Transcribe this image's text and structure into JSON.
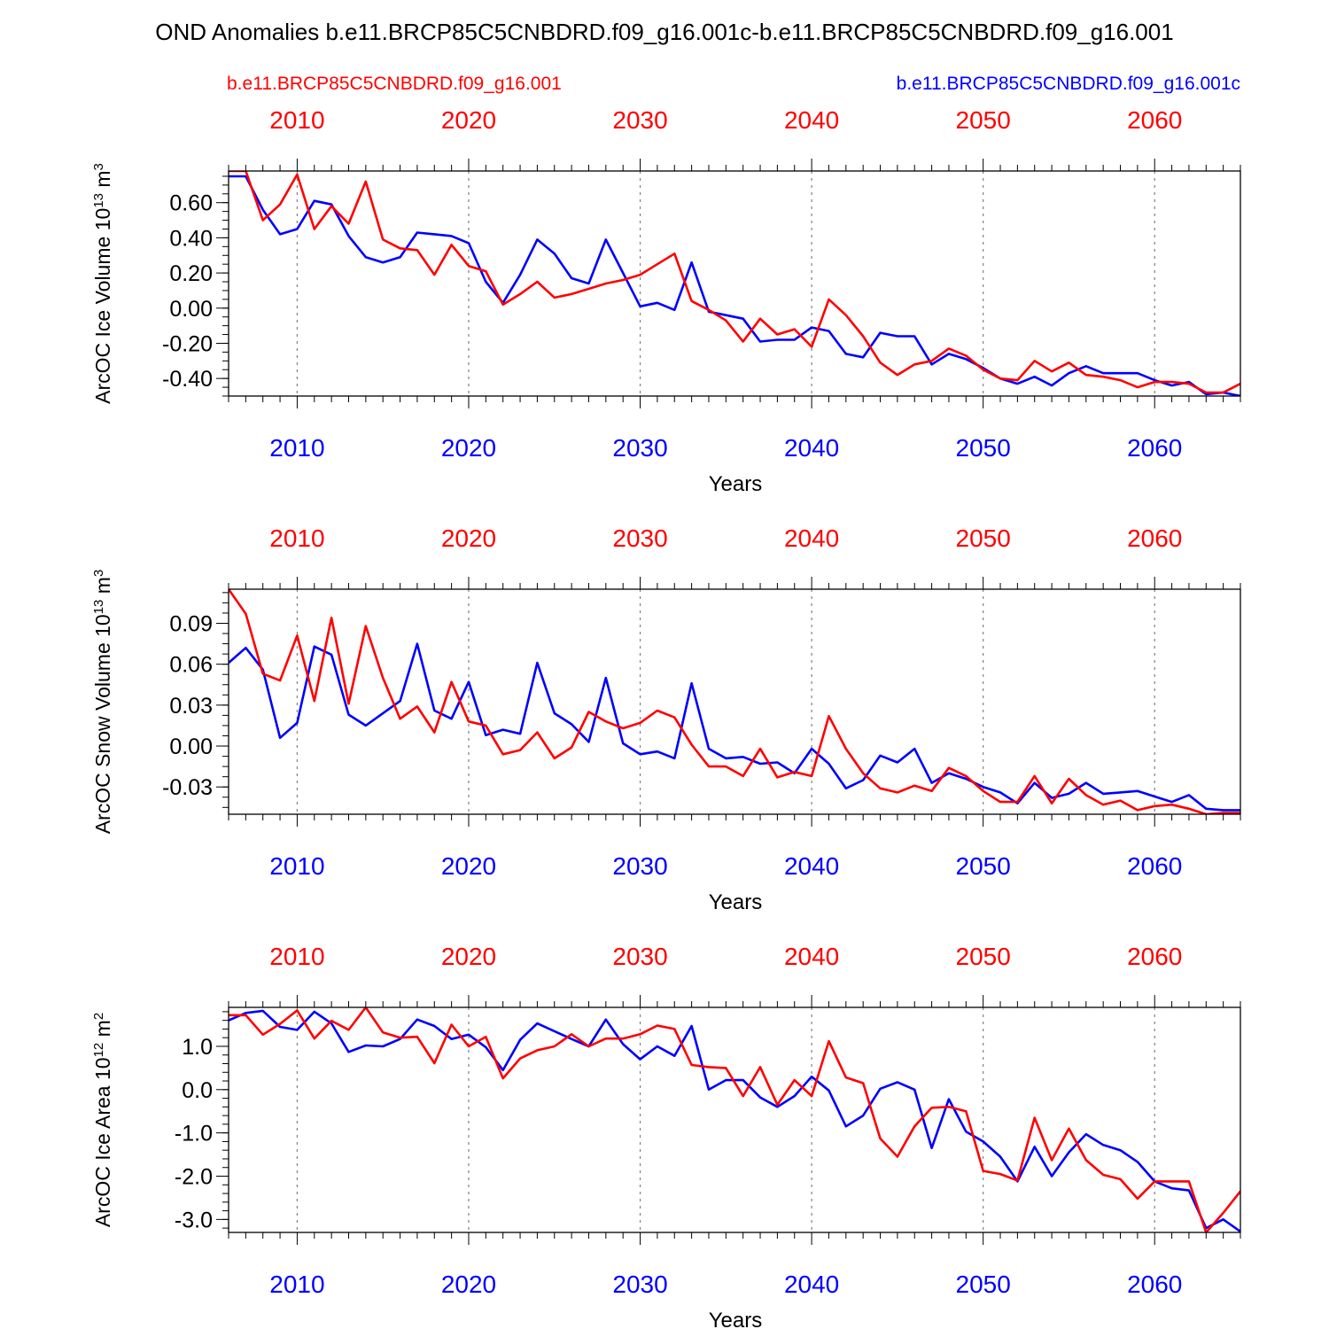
{
  "title": "OND Anomalies b.e11.BRCP85C5CNBDRD.f09_g16.001c-b.e11.BRCP85C5CNBDRD.f09_g16.001",
  "legend": {
    "red_label": "b.e11.BRCP85C5CNBDRD.f09_g16.001",
    "blue_label": "b.e11.BRCP85C5CNBDRD.f09_g16.001c"
  },
  "colors": {
    "red": "#ff0000",
    "blue": "#0000ff",
    "axis": "#000000",
    "grid": "#808080"
  },
  "chart_data": [
    {
      "type": "line",
      "ylabel_main": "ArcOC Ice Volume 10",
      "ylabel_exp": "13",
      "ylabel_tail": " m",
      "ylabel_unit_exp": "3",
      "xlabel": "Years",
      "xlim": [
        2006,
        2065
      ],
      "ylim": [
        -0.5,
        0.78
      ],
      "yticks": [
        0.6,
        0.4,
        0.2,
        0.0,
        -0.2,
        -0.4
      ],
      "ytick_labels": [
        "0.60",
        "0.40",
        "0.20",
        "0.00",
        "-0.20",
        "-0.40"
      ],
      "yminor_step": 0.05,
      "xticks": [
        2010,
        2020,
        2030,
        2040,
        2050,
        2060
      ],
      "xtick_labels": [
        "2010",
        "2020",
        "2030",
        "2040",
        "2050",
        "2060"
      ],
      "series": [
        {
          "name": "b.e11.BRCP85C5CNBDRD.f09_g16.001",
          "color": "red",
          "values": [
            0.78,
            0.78,
            0.5,
            0.59,
            0.76,
            0.45,
            0.58,
            0.48,
            0.72,
            0.39,
            0.34,
            0.33,
            0.19,
            0.36,
            0.24,
            0.21,
            0.02,
            0.08,
            0.15,
            0.06,
            0.08,
            0.11,
            0.14,
            0.16,
            0.19,
            0.25,
            0.31,
            0.04,
            -0.01,
            -0.07,
            -0.19,
            -0.06,
            -0.15,
            -0.12,
            -0.22,
            0.05,
            -0.04,
            -0.16,
            -0.31,
            -0.38,
            -0.32,
            -0.3,
            -0.23,
            -0.27,
            -0.35,
            -0.4,
            -0.41,
            -0.3,
            -0.36,
            -0.31,
            -0.38,
            -0.39,
            -0.41,
            -0.45,
            -0.42,
            -0.42,
            -0.43,
            -0.48,
            -0.48,
            -0.43
          ]
        },
        {
          "name": "b.e11.BRCP85C5CNBDRD.f09_g16.001c",
          "color": "blue",
          "values": [
            0.75,
            0.75,
            0.56,
            0.42,
            0.45,
            0.61,
            0.59,
            0.41,
            0.29,
            0.26,
            0.29,
            0.43,
            0.42,
            0.41,
            0.37,
            0.15,
            0.03,
            0.19,
            0.39,
            0.31,
            0.17,
            0.14,
            0.39,
            0.2,
            0.01,
            0.03,
            -0.01,
            0.26,
            -0.02,
            -0.04,
            -0.06,
            -0.19,
            -0.18,
            -0.18,
            -0.11,
            -0.13,
            -0.26,
            -0.28,
            -0.14,
            -0.16,
            -0.16,
            -0.32,
            -0.26,
            -0.29,
            -0.34,
            -0.4,
            -0.43,
            -0.39,
            -0.44,
            -0.37,
            -0.33,
            -0.37,
            -0.37,
            -0.37,
            -0.41,
            -0.44,
            -0.42,
            -0.49,
            -0.48,
            -0.5
          ]
        }
      ]
    },
    {
      "type": "line",
      "ylabel_main": "ArcOC Snow Volume 10",
      "ylabel_exp": "13",
      "ylabel_tail": " m",
      "ylabel_unit_exp": "3",
      "xlabel": "Years",
      "xlim": [
        2006,
        2065
      ],
      "ylim": [
        -0.05,
        0.115
      ],
      "yticks": [
        0.09,
        0.06,
        0.03,
        0.0,
        -0.03
      ],
      "ytick_labels": [
        "0.09",
        "0.06",
        "0.03",
        "0.00",
        "-0.03"
      ],
      "yminor_step": 0.0075,
      "xticks": [
        2010,
        2020,
        2030,
        2040,
        2050,
        2060
      ],
      "xtick_labels": [
        "2010",
        "2020",
        "2030",
        "2040",
        "2050",
        "2060"
      ],
      "series": [
        {
          "name": "b.e11.BRCP85C5CNBDRD.f09_g16.001",
          "color": "red",
          "values": [
            0.115,
            0.097,
            0.053,
            0.048,
            0.081,
            0.033,
            0.094,
            0.031,
            0.088,
            0.05,
            0.02,
            0.029,
            0.01,
            0.047,
            0.018,
            0.015,
            -0.006,
            -0.003,
            0.01,
            -0.009,
            -0.001,
            0.025,
            0.018,
            0.013,
            0.017,
            0.026,
            0.021,
            0.001,
            -0.015,
            -0.015,
            -0.022,
            -0.002,
            -0.023,
            -0.019,
            -0.022,
            0.022,
            -0.002,
            -0.02,
            -0.031,
            -0.034,
            -0.029,
            -0.033,
            -0.016,
            -0.022,
            -0.033,
            -0.041,
            -0.041,
            -0.022,
            -0.042,
            -0.024,
            -0.036,
            -0.043,
            -0.04,
            -0.047,
            -0.044,
            -0.043,
            -0.046,
            -0.05,
            -0.049,
            -0.049
          ]
        },
        {
          "name": "b.e11.BRCP85C5CNBDRD.f09_g16.001c",
          "color": "blue",
          "values": [
            0.061,
            0.072,
            0.056,
            0.006,
            0.017,
            0.073,
            0.067,
            0.023,
            0.015,
            0.024,
            0.033,
            0.075,
            0.026,
            0.02,
            0.047,
            0.008,
            0.012,
            0.009,
            0.061,
            0.024,
            0.016,
            0.003,
            0.05,
            0.002,
            -0.006,
            -0.004,
            -0.009,
            0.046,
            -0.002,
            -0.009,
            -0.008,
            -0.013,
            -0.012,
            -0.02,
            -0.002,
            -0.013,
            -0.031,
            -0.025,
            -0.007,
            -0.012,
            -0.002,
            -0.027,
            -0.02,
            -0.024,
            -0.03,
            -0.034,
            -0.042,
            -0.027,
            -0.038,
            -0.035,
            -0.027,
            -0.035,
            -0.034,
            -0.033,
            -0.037,
            -0.041,
            -0.036,
            -0.046,
            -0.047,
            -0.047
          ]
        }
      ]
    },
    {
      "type": "line",
      "ylabel_main": "ArcOC Ice Area 10",
      "ylabel_exp": "12",
      "ylabel_tail": " m",
      "ylabel_unit_exp": "2",
      "xlabel": "Years",
      "xlim": [
        2006,
        2065
      ],
      "ylim": [
        -3.3,
        1.9
      ],
      "yticks": [
        1.0,
        0.0,
        -1.0,
        -2.0,
        -3.0
      ],
      "ytick_labels": [
        "1.0",
        "0.0",
        "-1.0",
        "-2.0",
        "-3.0"
      ],
      "yminor_step": 0.2,
      "xticks": [
        2010,
        2020,
        2030,
        2040,
        2050,
        2060
      ],
      "xtick_labels": [
        "2010",
        "2020",
        "2030",
        "2040",
        "2050",
        "2060"
      ],
      "series": [
        {
          "name": "b.e11.BRCP85C5CNBDRD.f09_g16.001",
          "color": "red",
          "values": [
            1.72,
            1.72,
            1.27,
            1.52,
            1.83,
            1.18,
            1.59,
            1.38,
            1.9,
            1.32,
            1.2,
            1.22,
            0.61,
            1.5,
            1.0,
            1.22,
            0.26,
            0.72,
            0.91,
            1.0,
            1.28,
            1.0,
            1.18,
            1.18,
            1.28,
            1.48,
            1.4,
            0.57,
            0.52,
            0.5,
            -0.15,
            0.52,
            -0.35,
            0.22,
            -0.15,
            1.12,
            0.28,
            0.15,
            -1.13,
            -1.55,
            -0.85,
            -0.42,
            -0.4,
            -0.5,
            -1.88,
            -1.95,
            -2.1,
            -0.65,
            -1.63,
            -0.9,
            -1.63,
            -1.97,
            -2.07,
            -2.52,
            -2.12,
            -2.12,
            -2.12,
            -3.3,
            -2.85,
            -2.35
          ]
        },
        {
          "name": "b.e11.BRCP85C5CNBDRD.f09_g16.001c",
          "color": "blue",
          "values": [
            1.6,
            1.77,
            1.82,
            1.45,
            1.38,
            1.8,
            1.53,
            0.87,
            1.02,
            1.0,
            1.17,
            1.62,
            1.47,
            1.17,
            1.27,
            0.98,
            0.45,
            1.15,
            1.53,
            1.35,
            1.17,
            1.0,
            1.62,
            1.05,
            0.7,
            1.0,
            0.78,
            1.47,
            0.0,
            0.22,
            0.22,
            -0.18,
            -0.4,
            -0.15,
            0.3,
            -0.02,
            -0.85,
            -0.6,
            0.02,
            0.17,
            0.0,
            -1.35,
            -0.22,
            -0.97,
            -1.2,
            -1.55,
            -2.12,
            -1.32,
            -2.0,
            -1.45,
            -1.03,
            -1.28,
            -1.4,
            -1.67,
            -2.12,
            -2.28,
            -2.33,
            -3.2,
            -3.0,
            -3.28
          ]
        }
      ]
    }
  ]
}
